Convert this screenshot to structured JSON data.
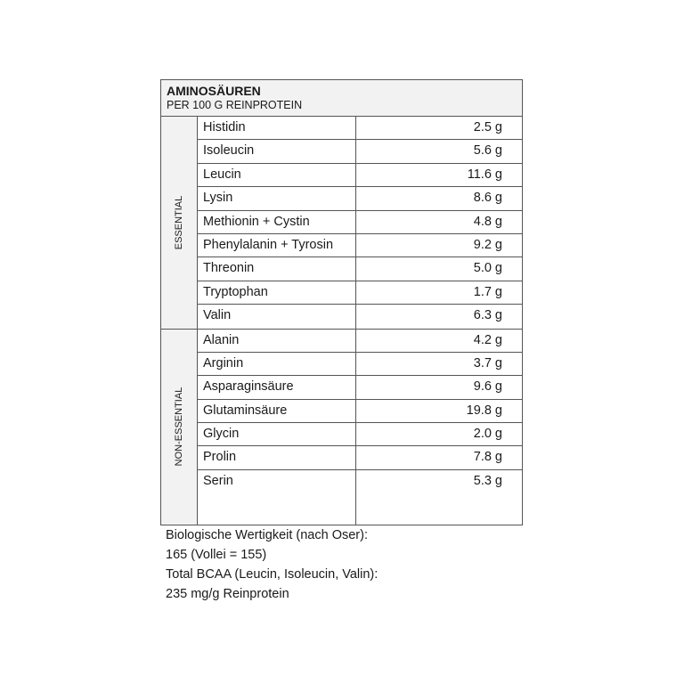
{
  "table": {
    "title": "AMINOSÄUREN",
    "subtitle": "PER 100 G REINPROTEIN",
    "groups": [
      {
        "label": "ESSENTIAL",
        "rows": [
          {
            "name": "Histidin",
            "value": "2.5 g"
          },
          {
            "name": "Isoleucin",
            "value": "5.6 g"
          },
          {
            "name": "Leucin",
            "value": "11.6 g"
          },
          {
            "name": "Lysin",
            "value": "8.6 g"
          },
          {
            "name": "Methionin + Cystin",
            "value": "4.8 g"
          },
          {
            "name": "Phenylalanin + Tyrosin",
            "value": "9.2 g"
          },
          {
            "name": "Threonin",
            "value": "5.0 g"
          },
          {
            "name": "Tryptophan",
            "value": "1.7 g"
          },
          {
            "name": "Valin",
            "value": "6.3 g"
          }
        ]
      },
      {
        "label": "NON-ESSENTIAL",
        "rows": [
          {
            "name": "Alanin",
            "value": "4.2 g"
          },
          {
            "name": "Arginin",
            "value": "3.7 g"
          },
          {
            "name": "Asparaginsäure",
            "value": "9.6 g"
          },
          {
            "name": "Glutaminsäure",
            "value": "19.8 g"
          },
          {
            "name": "Glycin",
            "value": "2.0 g"
          },
          {
            "name": "Prolin",
            "value": "7.8 g"
          },
          {
            "name": "Serin",
            "value": "5.3 g"
          }
        ]
      }
    ]
  },
  "footer": [
    "Biologische Wertigkeit (nach Oser):",
    "165 (Vollei = 155)",
    "Total BCAA (Leucin, Isoleucin, Valin):",
    "235 mg/g Reinprotein"
  ]
}
